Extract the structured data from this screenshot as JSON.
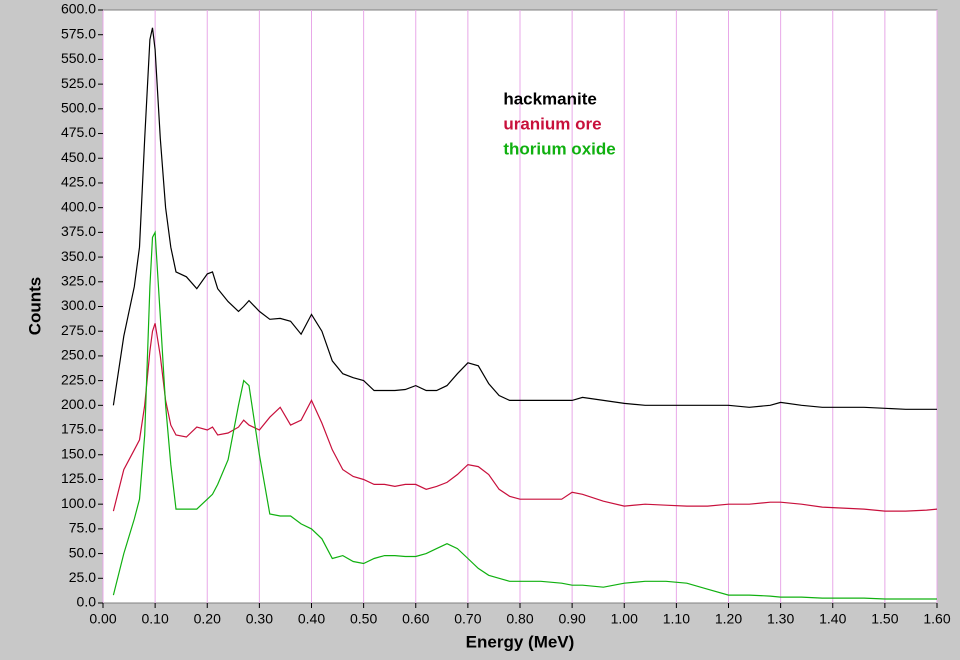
{
  "chart_data": {
    "type": "line",
    "xlabel": "Energy (MeV)",
    "ylabel": "Counts",
    "x": [
      0.02,
      0.04,
      0.06,
      0.07,
      0.08,
      0.09,
      0.095,
      0.1,
      0.11,
      0.12,
      0.13,
      0.14,
      0.16,
      0.18,
      0.2,
      0.21,
      0.22,
      0.24,
      0.26,
      0.27,
      0.28,
      0.3,
      0.32,
      0.34,
      0.36,
      0.38,
      0.4,
      0.42,
      0.44,
      0.46,
      0.48,
      0.5,
      0.52,
      0.54,
      0.56,
      0.58,
      0.6,
      0.62,
      0.64,
      0.66,
      0.68,
      0.7,
      0.72,
      0.74,
      0.76,
      0.78,
      0.8,
      0.84,
      0.88,
      0.9,
      0.92,
      0.96,
      1.0,
      1.04,
      1.08,
      1.12,
      1.16,
      1.2,
      1.24,
      1.28,
      1.3,
      1.34,
      1.38,
      1.42,
      1.46,
      1.5,
      1.54,
      1.58,
      1.6
    ],
    "series": [
      {
        "name": "hackmanite",
        "color": "#000000",
        "values": [
          200,
          270,
          320,
          360,
          470,
          570,
          582,
          560,
          470,
          400,
          360,
          335,
          330,
          318,
          333,
          335,
          318,
          305,
          295,
          300,
          306,
          295,
          287,
          288,
          285,
          272,
          292,
          275,
          245,
          232,
          228,
          225,
          215,
          215,
          215,
          216,
          220,
          215,
          215,
          220,
          232,
          243,
          240,
          222,
          210,
          205,
          205,
          205,
          205,
          205,
          208,
          205,
          202,
          200,
          200,
          200,
          200,
          200,
          198,
          200,
          203,
          200,
          198,
          198,
          198,
          197,
          196,
          196,
          196
        ]
      },
      {
        "name": "uranium ore",
        "color": "#c8103c",
        "values": [
          93,
          135,
          155,
          165,
          200,
          255,
          275,
          283,
          250,
          205,
          180,
          170,
          168,
          178,
          175,
          178,
          170,
          172,
          178,
          185,
          180,
          175,
          188,
          198,
          180,
          185,
          205,
          182,
          155,
          135,
          128,
          125,
          120,
          120,
          118,
          120,
          120,
          115,
          118,
          122,
          130,
          140,
          138,
          130,
          115,
          108,
          105,
          105,
          105,
          112,
          110,
          103,
          98,
          100,
          99,
          98,
          98,
          100,
          100,
          102,
          102,
          100,
          97,
          96,
          95,
          93,
          93,
          94,
          95
        ]
      },
      {
        "name": "thorium oxide",
        "color": "#10b010",
        "values": [
          8,
          50,
          85,
          105,
          170,
          320,
          370,
          375,
          290,
          200,
          140,
          95,
          95,
          95,
          105,
          110,
          120,
          145,
          200,
          225,
          220,
          150,
          90,
          88,
          88,
          80,
          75,
          65,
          45,
          48,
          42,
          40,
          45,
          48,
          48,
          47,
          47,
          50,
          55,
          60,
          55,
          45,
          35,
          28,
          25,
          22,
          22,
          22,
          20,
          18,
          18,
          16,
          20,
          22,
          22,
          20,
          14,
          8,
          8,
          7,
          6,
          6,
          5,
          5,
          5,
          4,
          4,
          4,
          4
        ]
      }
    ],
    "xlim": [
      0,
      1.6
    ],
    "xticks": [
      {
        "value": 0,
        "label": "0.00"
      },
      {
        "value": 0.1,
        "label": "0.10"
      },
      {
        "value": 0.2,
        "label": "0.20"
      },
      {
        "value": 0.3,
        "label": "0.30"
      },
      {
        "value": 0.4,
        "label": "0.40"
      },
      {
        "value": 0.5,
        "label": "0.50"
      },
      {
        "value": 0.6,
        "label": "0.60"
      },
      {
        "value": 0.7,
        "label": "0.70"
      },
      {
        "value": 0.8,
        "label": "0.80"
      },
      {
        "value": 0.9,
        "label": "0.90"
      },
      {
        "value": 1.0,
        "label": "1.00"
      },
      {
        "value": 1.1,
        "label": "1.10"
      },
      {
        "value": 1.2,
        "label": "1.20"
      },
      {
        "value": 1.3,
        "label": "1.30"
      },
      {
        "value": 1.4,
        "label": "1.40"
      },
      {
        "value": 1.5,
        "label": "1.50"
      },
      {
        "value": 1.6,
        "label": "1.60"
      }
    ],
    "ylim": [
      0,
      600
    ],
    "yticks": [
      {
        "value": 0,
        "label": "0.0"
      },
      {
        "value": 25,
        "label": "25.0"
      },
      {
        "value": 50,
        "label": "50.0"
      },
      {
        "value": 75,
        "label": "75.0"
      },
      {
        "value": 100,
        "label": "100.0"
      },
      {
        "value": 125,
        "label": "125.0"
      },
      {
        "value": 150,
        "label": "150.0"
      },
      {
        "value": 175,
        "label": "175.0"
      },
      {
        "value": 200,
        "label": "200.0"
      },
      {
        "value": 225,
        "label": "225.0"
      },
      {
        "value": 250,
        "label": "250.0"
      },
      {
        "value": 275,
        "label": "275.0"
      },
      {
        "value": 300,
        "label": "300.0"
      },
      {
        "value": 325,
        "label": "325.0"
      },
      {
        "value": 350,
        "label": "350.0"
      },
      {
        "value": 375,
        "label": "375.0"
      },
      {
        "value": 400,
        "label": "400.0"
      },
      {
        "value": 425,
        "label": "425.0"
      },
      {
        "value": 450,
        "label": "450.0"
      },
      {
        "value": 475,
        "label": "475.0"
      },
      {
        "value": 500,
        "label": "500.0"
      },
      {
        "value": 525,
        "label": "525.0"
      },
      {
        "value": 550,
        "label": "550.0"
      },
      {
        "value": 575,
        "label": "575.0"
      },
      {
        "value": 600,
        "label": "600.0"
      }
    ],
    "grid": true,
    "grid_color": "#e8a8e8",
    "legend_position": "top"
  }
}
